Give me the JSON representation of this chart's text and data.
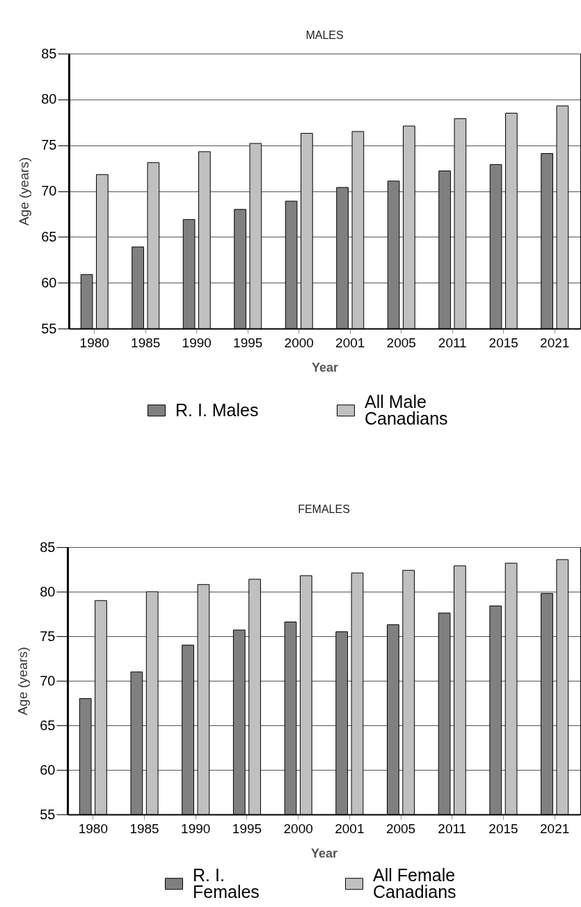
{
  "chart_data": [
    {
      "type": "bar",
      "title": "MALES",
      "xlabel": "Year",
      "ylabel": "Age (years)",
      "categories": [
        "1980",
        "1985",
        "1990",
        "1995",
        "2000",
        "2001",
        "2005",
        "2011",
        "2015",
        "2021"
      ],
      "series": [
        {
          "name": "R. I. Males",
          "color": "#808080",
          "values": [
            60.9,
            63.9,
            66.9,
            68.0,
            68.9,
            70.4,
            71.1,
            72.2,
            72.9,
            74.1
          ]
        },
        {
          "name": "All Male Canadians",
          "color": "#c0c0c0",
          "values": [
            71.8,
            73.1,
            74.3,
            75.2,
            76.3,
            76.5,
            77.1,
            77.9,
            78.5,
            79.3
          ]
        }
      ],
      "ylim": [
        55,
        85
      ],
      "yticks": [
        55,
        60,
        65,
        70,
        75,
        80,
        85
      ],
      "grid": "y",
      "legend": "bottom"
    },
    {
      "type": "bar",
      "title": "FEMALES",
      "xlabel": "Year",
      "ylabel": "Age (years)",
      "categories": [
        "1980",
        "1985",
        "1990",
        "1995",
        "2000",
        "2001",
        "2005",
        "2011",
        "2015",
        "2021"
      ],
      "series": [
        {
          "name": "R. I. Females",
          "color": "#808080",
          "values": [
            68.0,
            71.0,
            74.0,
            75.7,
            76.6,
            75.5,
            76.3,
            77.6,
            78.4,
            79.8
          ]
        },
        {
          "name": "All Female Canadians",
          "color": "#c0c0c0",
          "values": [
            79.0,
            80.0,
            80.8,
            81.4,
            81.8,
            82.1,
            82.4,
            82.9,
            83.2,
            83.6
          ]
        }
      ],
      "ylim": [
        55,
        85
      ],
      "yticks": [
        55,
        60,
        65,
        70,
        75,
        80,
        85
      ],
      "grid": "y",
      "legend": "bottom"
    }
  ]
}
